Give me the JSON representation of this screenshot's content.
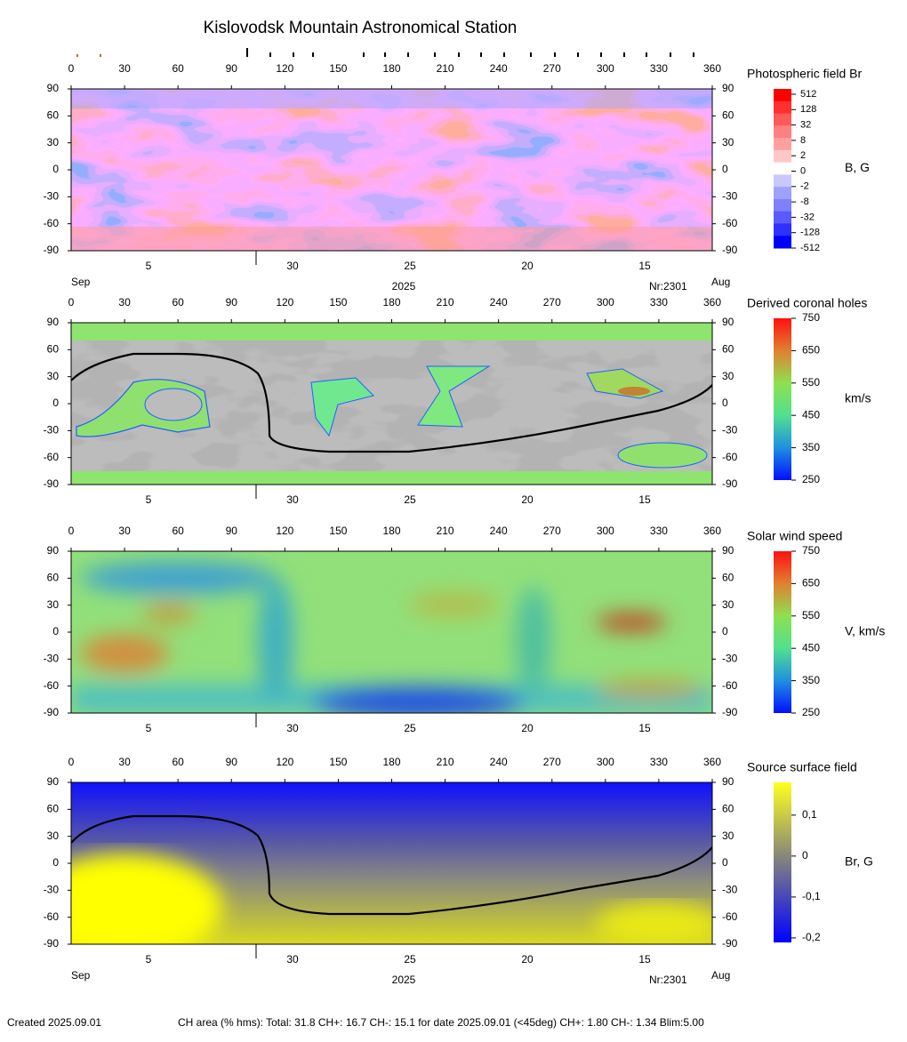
{
  "title": "Kislovodsk Mountain Astronomical Station",
  "lon_ticks": [
    0,
    30,
    60,
    90,
    120,
    150,
    180,
    210,
    240,
    270,
    300,
    330,
    360
  ],
  "lat_ticks": [
    90,
    60,
    30,
    0,
    -30,
    -60,
    -90
  ],
  "date_ticks": [
    "5",
    "30",
    "25",
    "20",
    "15"
  ],
  "month_left": "Sep",
  "year": "2025",
  "rotation": "Nr:2301",
  "month_right": "Aug",
  "panels": [
    {
      "title": "Photospheric field Br",
      "unit": "B, G",
      "colorbar_ticks": [
        512,
        128,
        32,
        8,
        2,
        0,
        -2,
        -8,
        -32,
        -128,
        -512
      ]
    },
    {
      "title": "Derived coronal holes",
      "unit": "km/s",
      "clim": [
        250,
        750
      ],
      "colorbar_ticks": [
        750,
        650,
        550,
        450,
        350,
        250
      ]
    },
    {
      "title": "Solar wind speed",
      "unit": "V, km/s",
      "clim": [
        250,
        750
      ],
      "colorbar_ticks": [
        750,
        650,
        550,
        450,
        350,
        250
      ]
    },
    {
      "title": "Source surface field",
      "unit": "Br, G",
      "clim": [
        -0.211,
        0.18
      ],
      "colorbar_ticks": [
        {
          "value": 0.1,
          "label": "0,1"
        },
        0,
        {
          "value": -0.1,
          "label": "-0,1"
        },
        {
          "value": -0.2,
          "label": "-0,2"
        }
      ]
    }
  ],
  "footer": {
    "created": "Created  2025.09.01",
    "ch_area": "CH area (% hms): Total: 31.8 CH+: 16.7   CH-: 15.1 for date 2025.09.01 (<45deg) CH+: 1.80    CH-: 1.34 Blim:5.00"
  }
}
